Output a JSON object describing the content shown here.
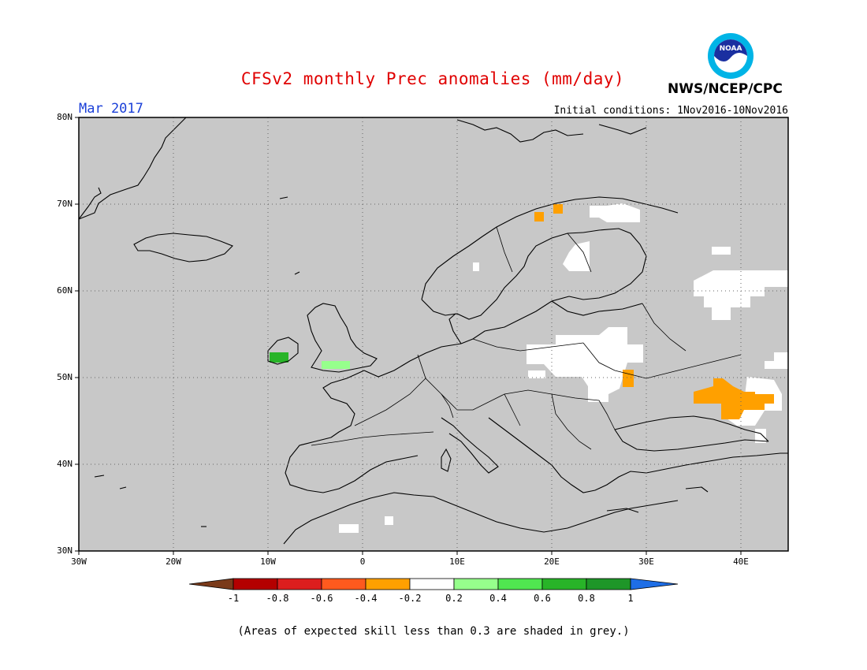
{
  "title": "CFSv2 monthly Prec anomalies (mm/day)",
  "agency": "NWS/NCEP/CPC",
  "logo_text": "NOAA",
  "valid_month": "Mar 2017",
  "initial_conditions": "Initial conditions: 1Nov2016-10Nov2016",
  "footnote": "(Areas of expected skill less than 0.3 are shaded in grey.)",
  "map": {
    "region": "Europe",
    "lon_range": [
      -30,
      45
    ],
    "lat_range": [
      30,
      80
    ],
    "lat_labels": [
      "80N",
      "70N",
      "60N",
      "50N",
      "40N",
      "30N"
    ],
    "lon_labels": [
      "30W",
      "20W",
      "10W",
      "0",
      "10E",
      "20E",
      "30E",
      "40E"
    ],
    "grid": "dotted",
    "skill_mask_color": "#c8c8c8"
  },
  "colorbar": {
    "labels": [
      "-1",
      "-0.8",
      "-0.6",
      "-0.4",
      "-0.2",
      "0.2",
      "0.4",
      "0.6",
      "0.8",
      "1"
    ],
    "colors": [
      "#7a3a1a",
      "#b40000",
      "#dc1e1e",
      "#ff5a1e",
      "#ffa000",
      "#ffffff",
      "#96ff8c",
      "#50e650",
      "#28b428",
      "#1e9628",
      "#1e6ee6"
    ]
  },
  "anomaly_regions": [
    {
      "category": "-0.4 to -0.2",
      "color": "#ffa000",
      "places": [
        "northern Norway",
        "Belarus/Ukraine border",
        "southern Russia near Sea of Azov"
      ]
    },
    {
      "category": "-0.2 to 0.2",
      "color": "#ffffff",
      "places": [
        "Kola Peninsula",
        "Finland",
        "Poland",
        "Ukraine",
        "western Russia",
        "North Africa"
      ]
    },
    {
      "category": "0.2 to 0.4",
      "color": "#96ff8c",
      "places": [
        "southern England"
      ]
    },
    {
      "category": "0.6 to 0.8",
      "color": "#28b428",
      "places": [
        "southwest Ireland"
      ]
    }
  ]
}
